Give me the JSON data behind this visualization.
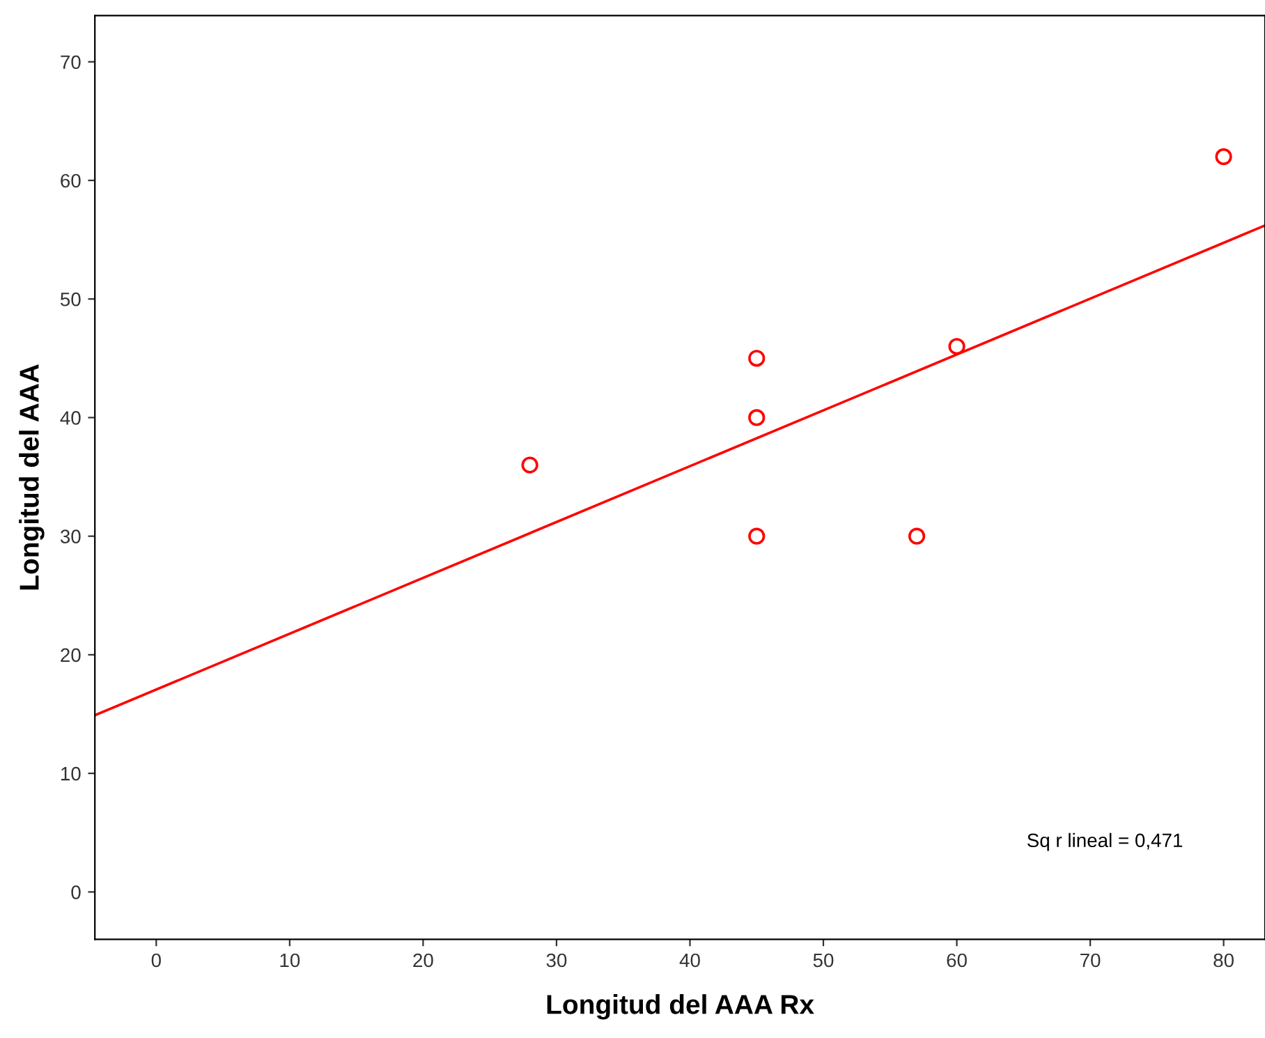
{
  "chart_data": {
    "type": "scatter",
    "xlabel": "Longitud del AAA Rx",
    "ylabel": "Longitud del AAA",
    "x": [
      28,
      45,
      45,
      45,
      57,
      60,
      80
    ],
    "series": [
      {
        "color": "#ff0000",
        "marker": "circle",
        "values": [
          36,
          45,
          40,
          30,
          30,
          46,
          62
        ]
      },
      {
        "type": "line",
        "color": "#ff0000",
        "marker": "none",
        "x": [
          -4.6,
          83.1
        ],
        "values": [
          14.9,
          56.2
        ]
      }
    ],
    "annotations": [
      "Sq r lineal = 0,471"
    ],
    "xlim": [
      -4.6,
      83.1
    ],
    "ylim": [
      -4,
      73.9
    ],
    "xticks": [
      0,
      10,
      20,
      30,
      40,
      50,
      60,
      70,
      80
    ],
    "yticks": [
      0,
      10,
      20,
      30,
      40,
      50,
      60,
      70
    ],
    "grid": false,
    "legend": false
  }
}
